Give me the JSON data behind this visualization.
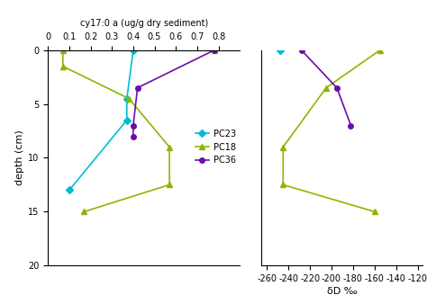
{
  "left_panel": {
    "title": "cy17:0 a (ug/g dry sediment)",
    "xlim": [
      0,
      0.9
    ],
    "xticks": [
      0,
      0.1,
      0.2,
      0.3,
      0.4,
      0.5,
      0.6,
      0.7,
      0.8
    ],
    "xticklabels": [
      "0",
      "0.1",
      "0.2",
      "0.3",
      "0.4",
      "0.5",
      "0.6",
      "0.7",
      "0.8"
    ],
    "ylim": [
      20.0,
      0.0
    ],
    "yticks": [
      0.0,
      5.0,
      10.0,
      15.0,
      20.0
    ],
    "PC23": {
      "x": [
        0.4,
        0.37,
        0.37,
        0.1
      ],
      "y": [
        0.0,
        4.5,
        6.5,
        13.0
      ],
      "color": "#00bcd4",
      "marker": "D",
      "label": "PC23"
    },
    "PC18": {
      "x": [
        0.78,
        0.07,
        0.07,
        0.38,
        0.57,
        0.57,
        0.17
      ],
      "y": [
        0.0,
        0.0,
        1.5,
        4.5,
        9.0,
        12.5,
        15.0
      ],
      "color": "#8db600",
      "marker": "^",
      "label": "PC18"
    },
    "PC36": {
      "x": [
        0.78,
        0.42,
        0.4,
        0.4
      ],
      "y": [
        0.0,
        3.5,
        7.0,
        8.0
      ],
      "color": "#6a0dad",
      "marker": "o",
      "label": "PC36"
    }
  },
  "right_panel": {
    "xlabel": "δD ‰",
    "xlim": [
      -265,
      -115
    ],
    "xticks": [
      -260,
      -240,
      -220,
      -200,
      -180,
      -160,
      -140,
      -120
    ],
    "xticklabels": [
      "-260",
      "-240",
      "-220",
      "-200",
      "-180",
      "-160",
      "-140",
      "-120"
    ],
    "ylim": [
      20.0,
      0.0
    ],
    "yticks": [
      0.0,
      5.0,
      10.0,
      15.0,
      20.0
    ],
    "PC23": {
      "x": [
        -248
      ],
      "y": [
        0.0
      ],
      "color": "#00bcd4",
      "marker": "D"
    },
    "PC18": {
      "x": [
        -155,
        -205,
        -245,
        -245,
        -160
      ],
      "y": [
        0.0,
        3.5,
        9.0,
        12.5,
        15.0
      ],
      "color": "#8db600",
      "marker": "^"
    },
    "PC36": {
      "x": [
        -228,
        -195,
        -182
      ],
      "y": [
        0.0,
        3.5,
        7.0
      ],
      "color": "#6a0dad",
      "marker": "o"
    }
  },
  "ylabel": "depth (cm)",
  "legend_labels": [
    "PC23",
    "PC18",
    "PC36"
  ],
  "legend_colors": [
    "#00bcd4",
    "#8db600",
    "#6a0dad"
  ],
  "legend_markers": [
    "D",
    "^",
    "o"
  ]
}
